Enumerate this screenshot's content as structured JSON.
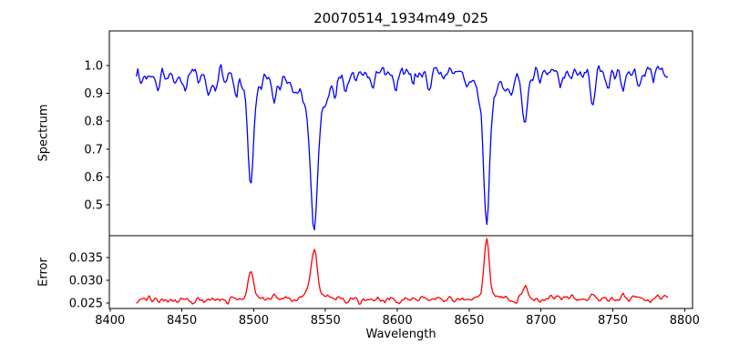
{
  "title": "20070514_1934m49_025",
  "xlabel": "Wavelength",
  "background_color": "#ffffff",
  "axis_color": "#000000",
  "chart_data": [
    {
      "type": "line",
      "name": "spectrum",
      "ylabel": "Spectrum",
      "color": "#0000ff",
      "legend": "none",
      "grid": false,
      "xlim": [
        8399.5,
        8805.5
      ],
      "ylim": [
        0.389,
        1.124
      ],
      "xticks": [
        8400,
        8450,
        8500,
        8550,
        8600,
        8650,
        8700,
        8750,
        8800
      ],
      "xtick_labels": [
        "8400",
        "8450",
        "8500",
        "8550",
        "8600",
        "8650",
        "8700",
        "8750",
        "8800"
      ],
      "yticks": [
        1.0,
        0.9,
        0.8,
        0.7,
        0.6,
        0.5
      ],
      "ytick_labels": [
        "1.0",
        "0.9",
        "0.8",
        "0.7",
        "0.6",
        "0.5"
      ],
      "key_points": [
        {
          "x": 8418,
          "y": 0.96
        },
        {
          "x": 8473,
          "y": 0.88
        },
        {
          "x": 8498,
          "y": 0.61
        },
        {
          "x": 8514,
          "y": 0.87
        },
        {
          "x": 8542,
          "y": 0.43
        },
        {
          "x": 8662,
          "y": 0.44
        },
        {
          "x": 8689,
          "y": 0.78
        },
        {
          "x": 8736,
          "y": 0.83
        },
        {
          "x": 8788,
          "y": 0.97
        }
      ],
      "series_model": {
        "x_start": 8418.3,
        "x_end": 8788.3,
        "x_step": 1.0,
        "base": 0.962,
        "slope": 4e-05,
        "direction": -1,
        "noise_sigma": 0.019,
        "seed": 1934,
        "features": [
          {
            "c": 8498.0,
            "a": 0.28,
            "w": 1.8,
            "a2": 0.09,
            "w2": 5.0
          },
          {
            "c": 8542.1,
            "a": 0.4,
            "w": 2.2,
            "a2": 0.15,
            "w2": 8.0
          },
          {
            "c": 8662.1,
            "a": 0.42,
            "w": 2.0,
            "a2": 0.12,
            "w2": 6.0
          },
          {
            "c": 8688.6,
            "a": 0.155,
            "w": 1.7,
            "a2": 0.035,
            "w2": 4.0
          },
          {
            "c": 8434.0,
            "a": 0.05,
            "w": 1.2
          },
          {
            "c": 8445.0,
            "a": 0.04,
            "w": 1.1
          },
          {
            "c": 8452.3,
            "a": 0.048,
            "w": 1.2
          },
          {
            "c": 8468.4,
            "a": 0.055,
            "w": 1.3
          },
          {
            "c": 8473.6,
            "a": 0.068,
            "w": 1.2
          },
          {
            "c": 8488.0,
            "a": 0.04,
            "w": 1.1
          },
          {
            "c": 8514.1,
            "a": 0.095,
            "w": 1.4
          },
          {
            "c": 8518.5,
            "a": 0.048,
            "w": 1.2
          },
          {
            "c": 8527.0,
            "a": 0.042,
            "w": 1.1
          },
          {
            "c": 8556.8,
            "a": 0.05,
            "w": 1.2
          },
          {
            "c": 8564.0,
            "a": 0.04,
            "w": 1.1
          },
          {
            "c": 8582.5,
            "a": 0.058,
            "w": 1.3
          },
          {
            "c": 8598.8,
            "a": 0.052,
            "w": 1.2
          },
          {
            "c": 8611.0,
            "a": 0.042,
            "w": 1.1
          },
          {
            "c": 8621.5,
            "a": 0.058,
            "w": 1.3
          },
          {
            "c": 8632.0,
            "a": 0.04,
            "w": 1.1
          },
          {
            "c": 8648.5,
            "a": 0.048,
            "w": 1.2
          },
          {
            "c": 8674.7,
            "a": 0.055,
            "w": 1.2
          },
          {
            "c": 8679.0,
            "a": 0.075,
            "w": 1.3
          },
          {
            "c": 8699.0,
            "a": 0.045,
            "w": 1.1
          },
          {
            "c": 8713.2,
            "a": 0.058,
            "w": 1.2
          },
          {
            "c": 8736.0,
            "a": 0.125,
            "w": 1.5
          },
          {
            "c": 8747.0,
            "a": 0.055,
            "w": 1.2
          },
          {
            "c": 8757.1,
            "a": 0.068,
            "w": 1.3
          },
          {
            "c": 8768.0,
            "a": 0.048,
            "w": 1.2
          },
          {
            "c": 8778.0,
            "a": 0.042,
            "w": 1.1
          }
        ]
      }
    },
    {
      "type": "line",
      "name": "error",
      "ylabel": "Error",
      "color": "#ff0000",
      "legend": "none",
      "grid": false,
      "xlim": [
        8399.5,
        8805.5
      ],
      "ylim": [
        0.0238,
        0.0398
      ],
      "yticks": [
        0.035,
        0.03,
        0.025
      ],
      "ytick_labels": [
        "0.035",
        "0.030",
        "0.025"
      ],
      "key_points": [
        {
          "x": 8418,
          "y": 0.0256
        },
        {
          "x": 8498,
          "y": 0.031
        },
        {
          "x": 8514,
          "y": 0.027
        },
        {
          "x": 8542,
          "y": 0.037
        },
        {
          "x": 8662,
          "y": 0.039
        },
        {
          "x": 8689,
          "y": 0.0285
        },
        {
          "x": 8788,
          "y": 0.026
        }
      ],
      "series_model": {
        "x_start": 8418.3,
        "x_end": 8788.3,
        "x_step": 1.0,
        "base": 0.0256,
        "slope": 1e-06,
        "direction": 1,
        "noise_sigma": 0.0006,
        "seed": 49,
        "features": [
          {
            "c": 8498.0,
            "a": 0.005,
            "w": 1.8,
            "a2": 0.001,
            "w2": 4.5
          },
          {
            "c": 8542.1,
            "a": 0.0096,
            "w": 2.0,
            "a2": 0.0022,
            "w2": 6.0
          },
          {
            "c": 8662.1,
            "a": 0.0118,
            "w": 1.7,
            "a2": 0.0016,
            "w2": 5.0
          },
          {
            "c": 8688.6,
            "a": 0.0024,
            "w": 1.6
          },
          {
            "c": 8514.1,
            "a": 0.0013,
            "w": 1.5
          },
          {
            "c": 8736.0,
            "a": 0.0012,
            "w": 1.5
          },
          {
            "c": 8757.1,
            "a": 0.0008,
            "w": 1.4
          }
        ]
      }
    }
  ]
}
